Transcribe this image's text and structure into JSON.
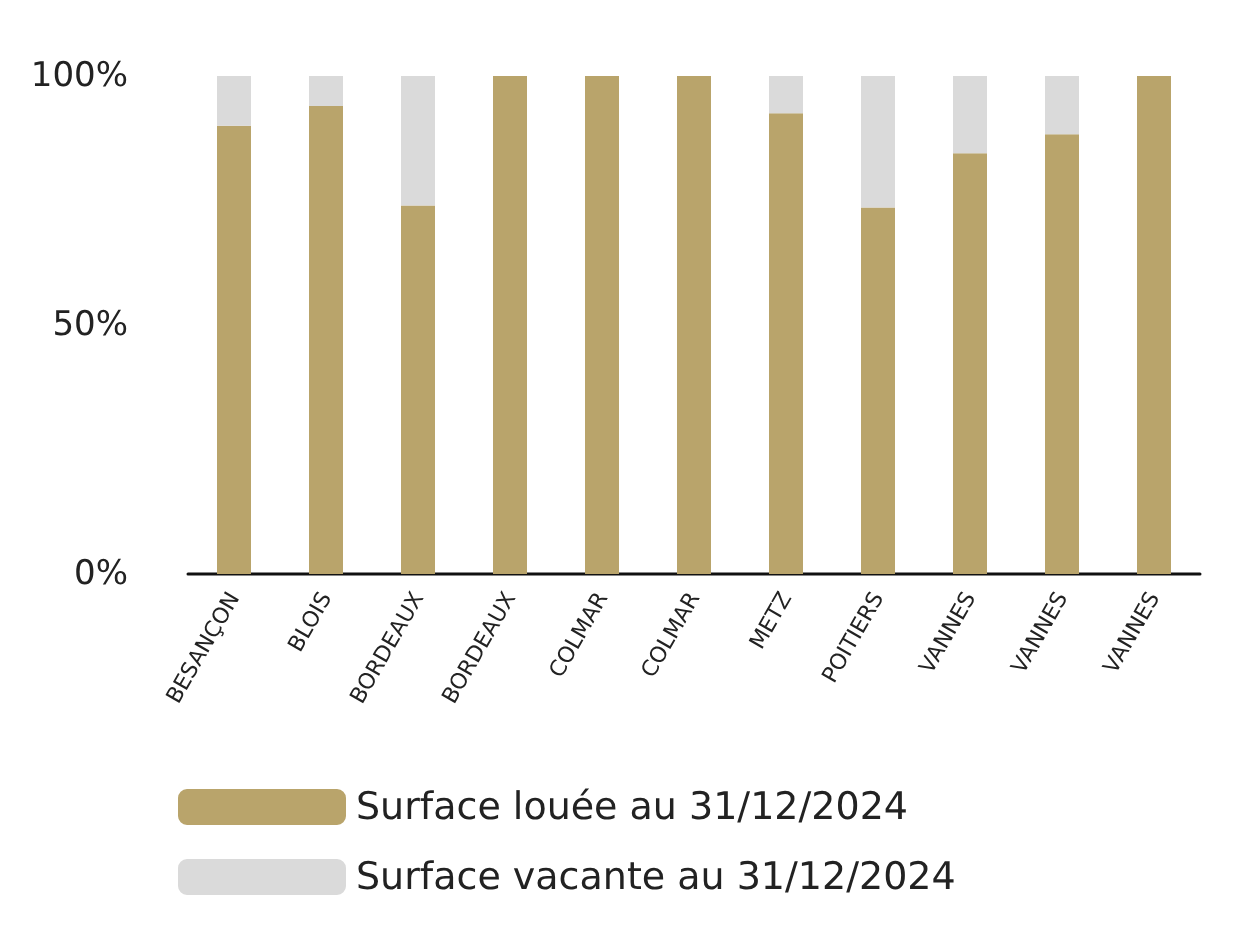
{
  "chart_data": {
    "type": "bar",
    "stacked": true,
    "categories": [
      "BESANÇON",
      "BLOIS",
      "BORDEAUX",
      "BORDEAUX",
      "COLMAR",
      "COLMAR",
      "METZ",
      "POITIERS",
      "VANNES",
      "VANNES",
      "VANNES"
    ],
    "series": [
      {
        "name": "Surface louée au 31/12/2024",
        "color": "#b9a46b",
        "values": [
          90,
          94,
          74,
          100,
          100,
          100,
          92.5,
          73.6,
          84.5,
          88.3,
          100
        ]
      },
      {
        "name": "Surface vacante au 31/12/2024",
        "color": "#dadada",
        "values": [
          10,
          6,
          26,
          0,
          0,
          0,
          7.5,
          26.4,
          15.5,
          11.7,
          0
        ]
      }
    ],
    "ylim": [
      0,
      100
    ],
    "yticks": [
      {
        "value": 0,
        "label": "0%"
      },
      {
        "value": 50,
        "label": "50%"
      },
      {
        "value": 100,
        "label": "100%"
      }
    ],
    "grid": false,
    "legend": "bottom left"
  }
}
